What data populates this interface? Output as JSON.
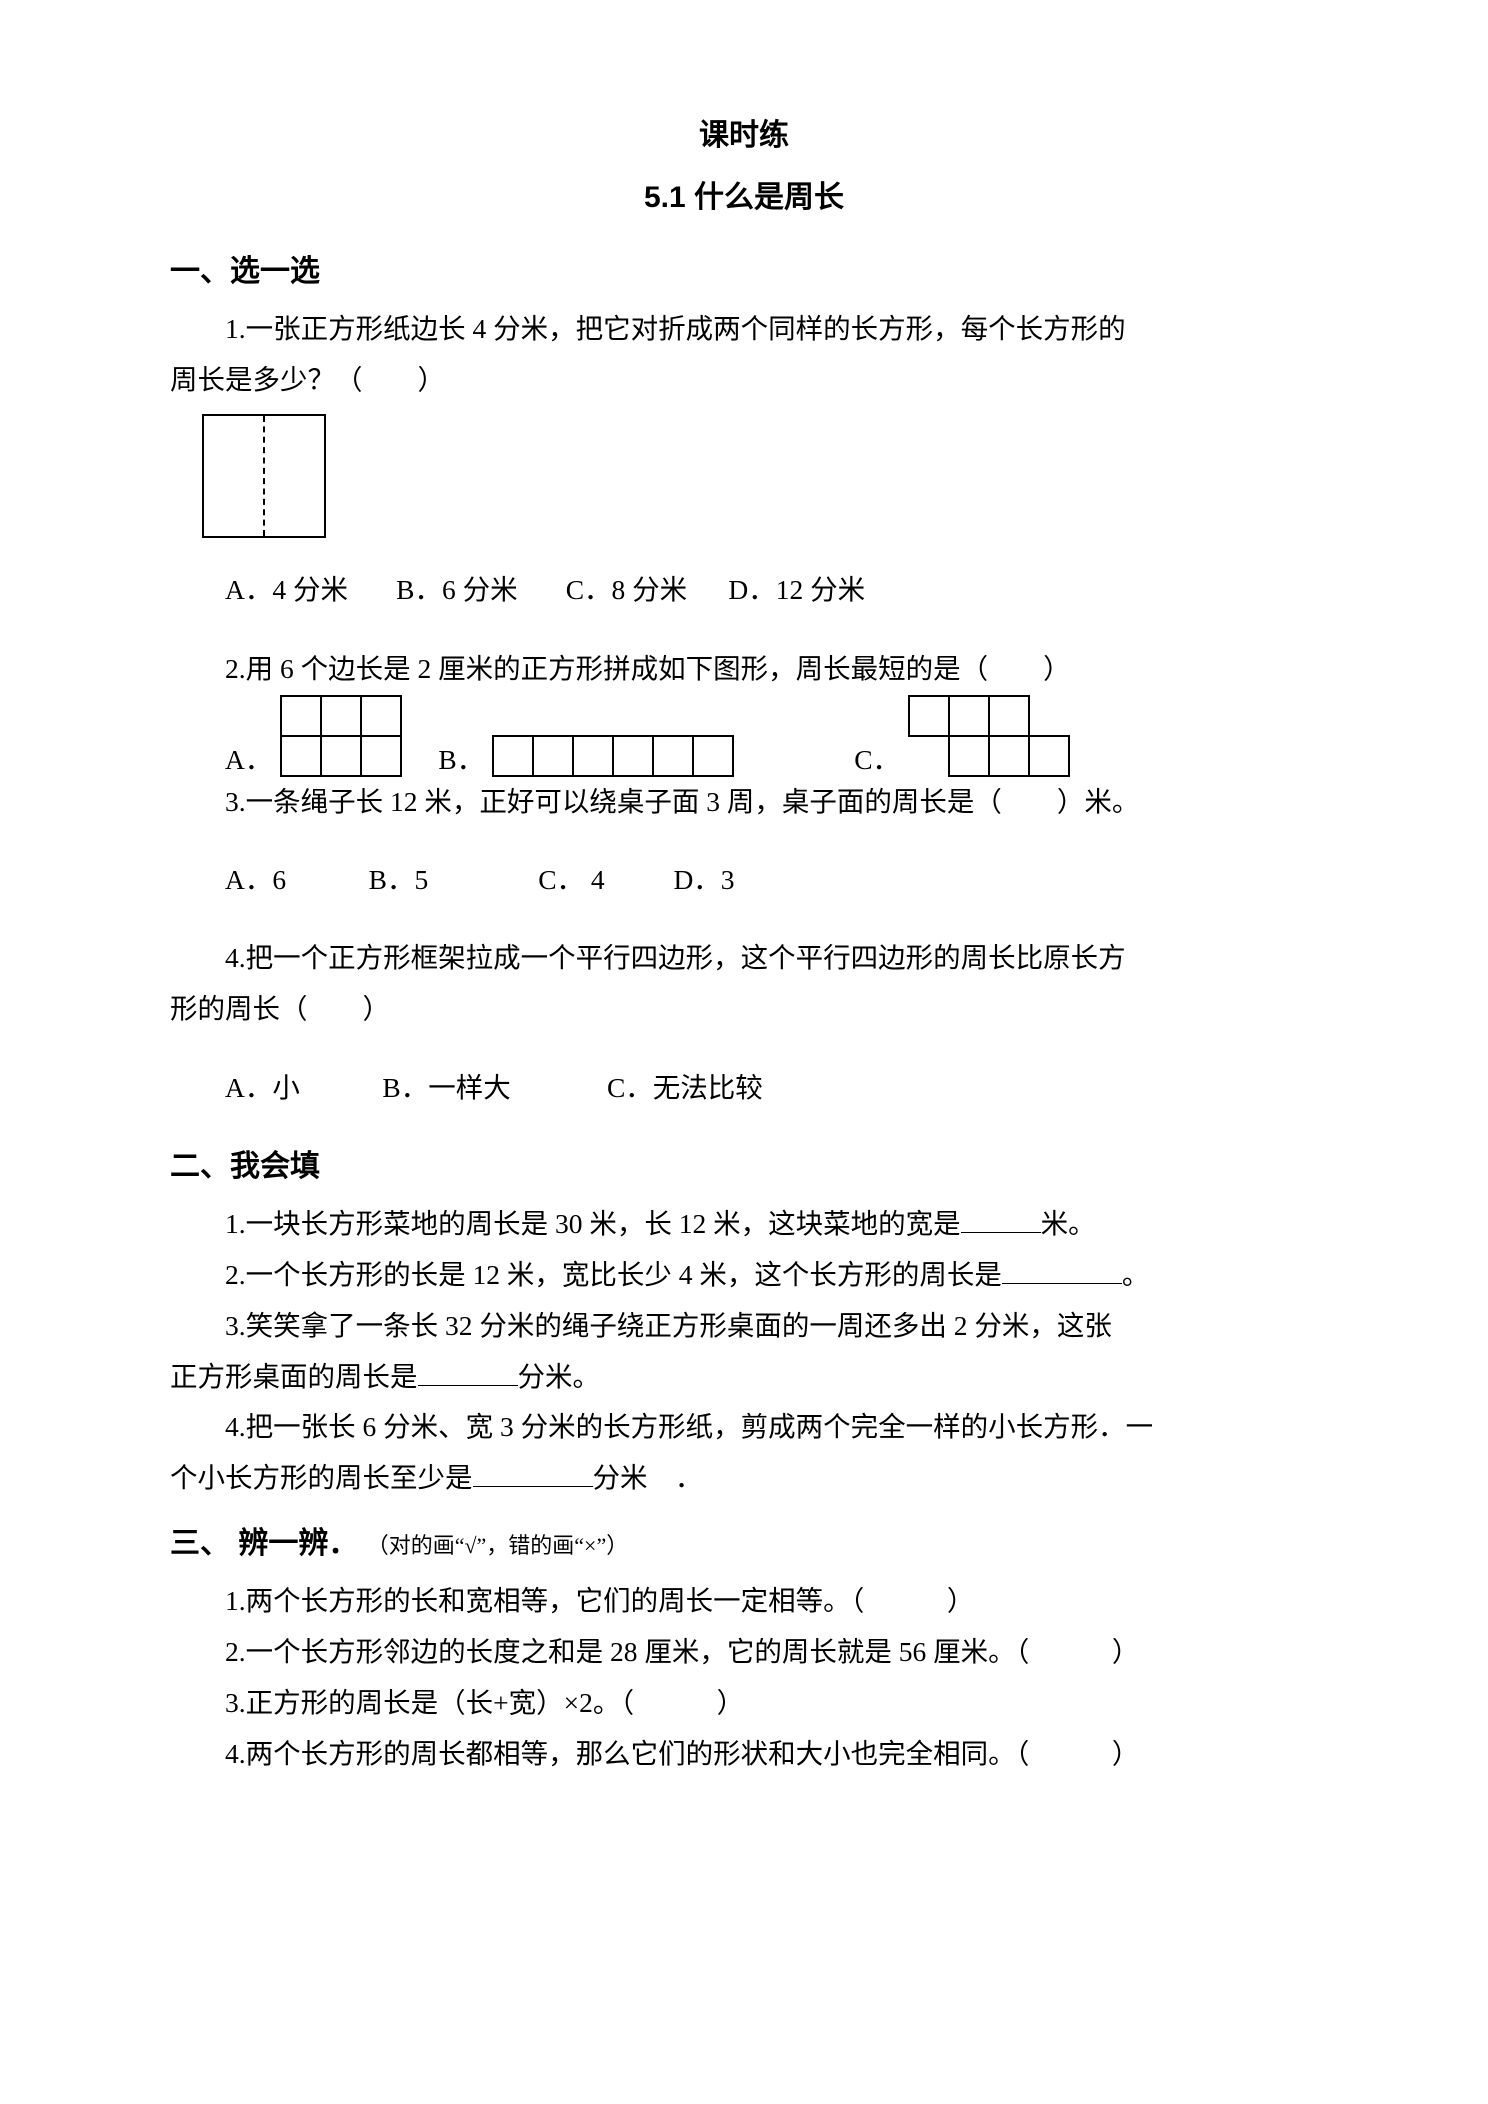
{
  "title_main": "课时练",
  "title_sub": "5.1 什么是周长",
  "sections": {
    "s1": {
      "heading": "一、选一选",
      "q1": {
        "text": "1.一张正方形纸边长 4 分米，把它对折成两个同样的长方形，每个长方形的",
        "text2": "周长是多少？（　　）",
        "optA": "A．4 分米",
        "optB": "B．6 分米",
        "optC": "C．8 分米",
        "optD": "D．12 分米"
      },
      "q2": {
        "text": "2.用 6 个边长是 2 厘米的正方形拼成如下图形，周长最短的是（　　）",
        "labelA": "A．",
        "labelB": "B．",
        "labelC": "C．",
        "cell": 40,
        "stroke": "#000000",
        "strokeWidth": 2
      },
      "q3": {
        "text": "3.一条绳子长 12 米，正好可以绕桌子面 3 周，桌子面的周长是（　　）米。",
        "optA": "A．6",
        "optB": "B．5",
        "optC": "C． 4",
        "optD": "D．3"
      },
      "q4": {
        "text": "4.把一个正方形框架拉成一个平行四边形，这个平行四边形的周长比原长方",
        "text2": "形的周长（　　）",
        "optA": "A．小",
        "optB": "B．一样大",
        "optC": "C．无法比较"
      }
    },
    "s2": {
      "heading": "二、我会填",
      "q1a": "1.一块长方形菜地的周长是 30 米，长 12 米，这块菜地的宽是",
      "q1b": "米。",
      "q2a": "2.一个长方形的长是 12 米，宽比长少 4 米，这个长方形的周长是",
      "q2b": "。",
      "q3a": "3.笑笑拿了一条长 32 分米的绳子绕正方形桌面的一周还多出 2 分米，这张",
      "q3b": "正方形桌面的周长是",
      "q3c": "分米。",
      "q4a": "4.把一张长 6 分米、宽 3 分米的长方形纸，剪成两个完全一样的小长方形．一",
      "q4b": "个小长方形的周长至少是",
      "q4c": "分米　．"
    },
    "s3": {
      "heading": "三、 辨一辨．",
      "heading_tail": "（对的画“√”，错的画“×”）",
      "q1": "1.两个长方形的长和宽相等，它们的周长一定相等。（　　　）",
      "q2": "2.一个长方形邻边的长度之和是 28 厘米，它的周长就是 56 厘米。（　　　）",
      "q3": "3.正方形的周长是（长+宽）×2。（　　　）",
      "q4": "4.两个长方形的周长都相等，那么它们的形状和大小也完全相同。（　　　）"
    }
  },
  "blank_widths": {
    "short": 80,
    "med": 120
  }
}
